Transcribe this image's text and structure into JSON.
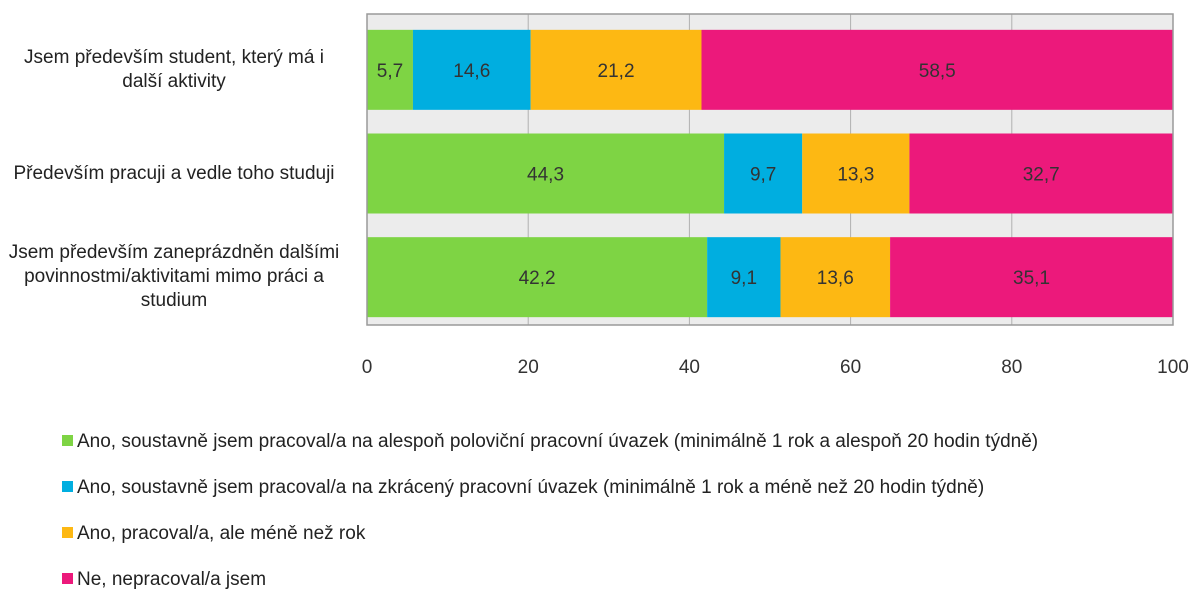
{
  "chart_data": {
    "type": "stacked_barh",
    "categories": [
      "Jsem především student, který má i další aktivity",
      "Především pracuji a vedle toho studuji",
      "Jsem především zaneprázdněn dalšími povinnostmi/aktivitami mimo práci a studium"
    ],
    "series": [
      {
        "name": "Ano, soustavně jsem pracoval/a na alespoň poloviční pracovní úvazek (minimálně 1 rok a alespoň 20 hodin týdně)",
        "color": "#7ed444",
        "values": [
          5.7,
          44.3,
          42.2
        ],
        "value_labels": [
          "5,7",
          "44,3",
          "42,2"
        ]
      },
      {
        "name": "Ano, soustavně jsem pracoval/a na zkrácený pracovní úvazek (minimálně 1 rok a méně než 20 hodin týdně)",
        "color": "#00aee0",
        "values": [
          14.6,
          9.7,
          9.1
        ],
        "value_labels": [
          "14,6",
          "9,7",
          "9,1"
        ]
      },
      {
        "name": "Ano, pracoval/a, ale méně než rok",
        "color": "#fdb813",
        "values": [
          21.2,
          13.3,
          13.6
        ],
        "value_labels": [
          "21,2",
          "13,3",
          "13,6"
        ]
      },
      {
        "name": "Ne, nepracoval/a jsem",
        "color": "#ec197b",
        "values": [
          58.5,
          32.7,
          35.1
        ],
        "value_labels": [
          "58,5",
          "32,7",
          "35,1"
        ]
      }
    ],
    "xlim": [
      0,
      100
    ],
    "xticks": [
      0,
      20,
      40,
      60,
      80,
      100
    ],
    "grid": true
  }
}
